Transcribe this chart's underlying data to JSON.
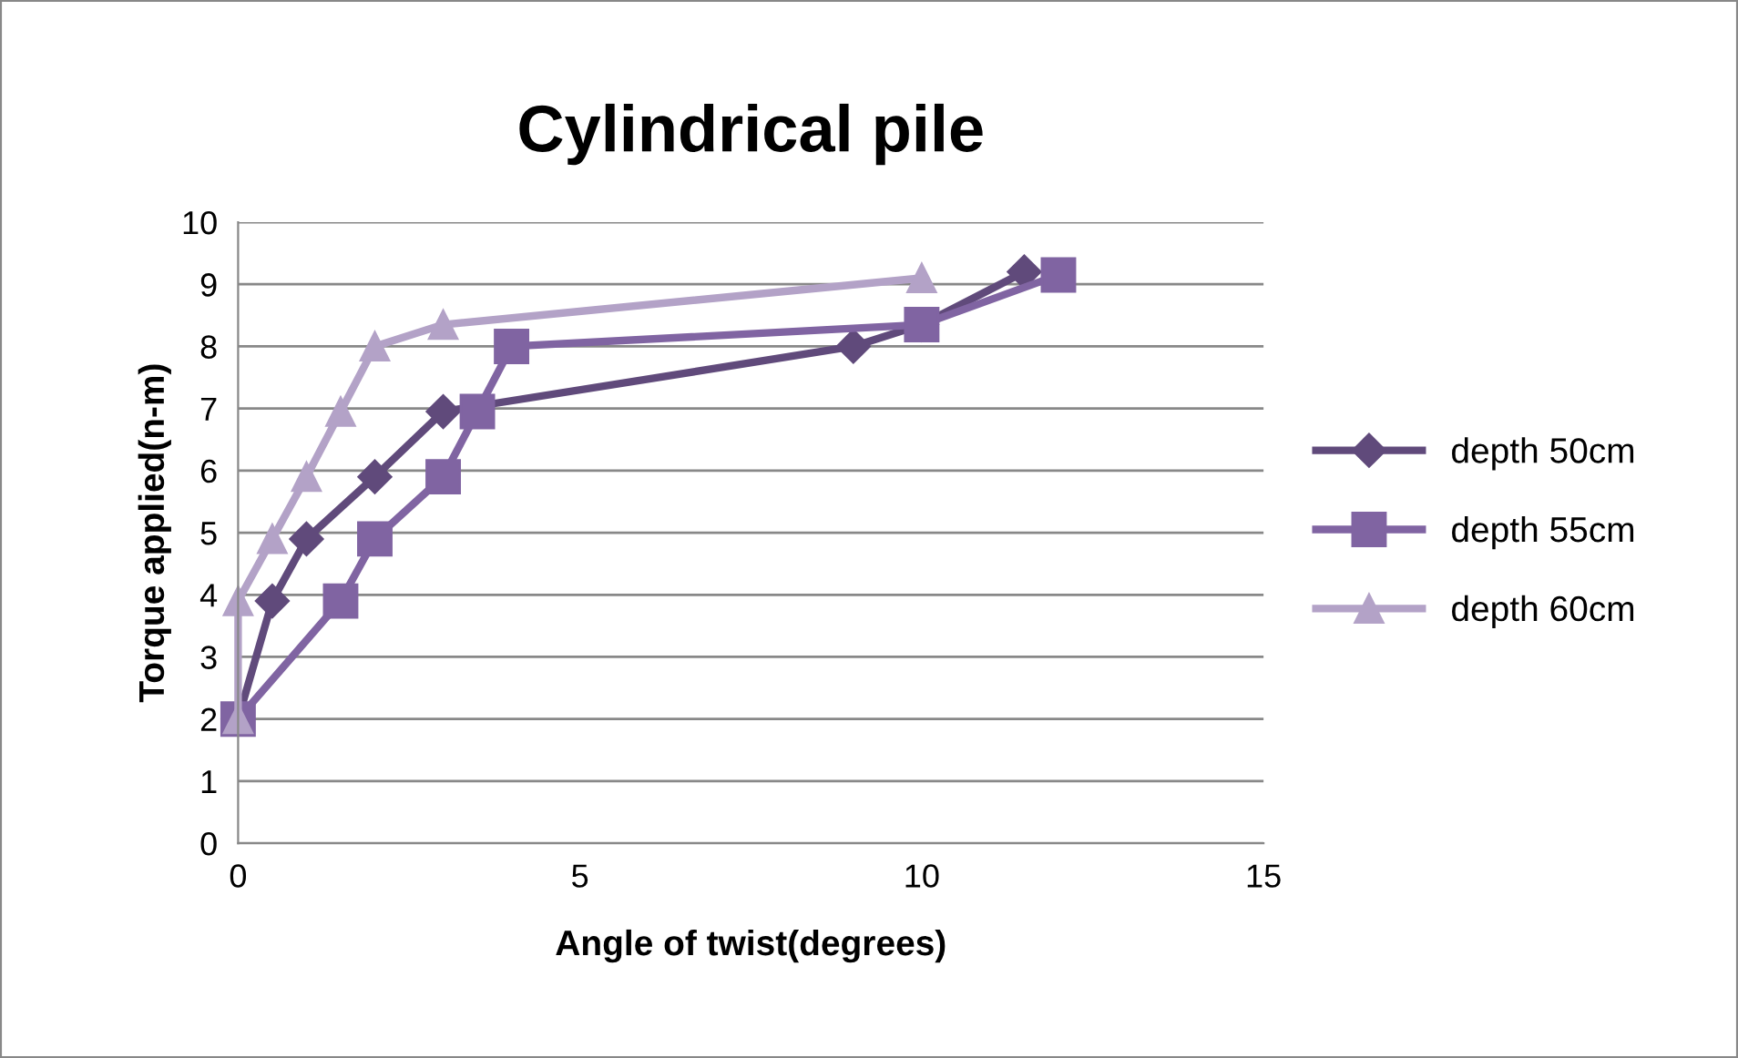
{
  "chart_data": {
    "type": "line",
    "title": "Cylindrical pile",
    "xlabel": "Angle of twist(degrees)",
    "ylabel": "Torque applied(n-m)",
    "xlim": [
      0,
      15
    ],
    "xticks": [
      0,
      5,
      10,
      15
    ],
    "ylim": [
      0,
      10
    ],
    "yticks": [
      0,
      1,
      2,
      3,
      4,
      5,
      6,
      7,
      8,
      9,
      10
    ],
    "grid": "y",
    "legend": "right",
    "series": [
      {
        "name": "depth 50cm",
        "color": "#604a7b",
        "marker": "diamond",
        "x": [
          0,
          0.5,
          1,
          2,
          3,
          9,
          10,
          11.5
        ],
        "values": [
          2,
          3.9,
          4.9,
          5.9,
          6.95,
          8,
          8.35,
          9.2
        ]
      },
      {
        "name": "depth 55cm",
        "color": "#8064a2",
        "marker": "square",
        "x": [
          0,
          1.5,
          2,
          3,
          3.5,
          4,
          10,
          12
        ],
        "values": [
          2,
          3.9,
          4.9,
          5.9,
          6.95,
          8,
          8.35,
          9.15
        ]
      },
      {
        "name": "depth 60cm",
        "color": "#b3a2c7",
        "marker": "triangle",
        "x": [
          0,
          0,
          0.5,
          1,
          1.5,
          2,
          3,
          10
        ],
        "values": [
          2,
          3.9,
          4.9,
          5.9,
          6.95,
          8,
          8.35,
          9.1
        ]
      }
    ]
  }
}
